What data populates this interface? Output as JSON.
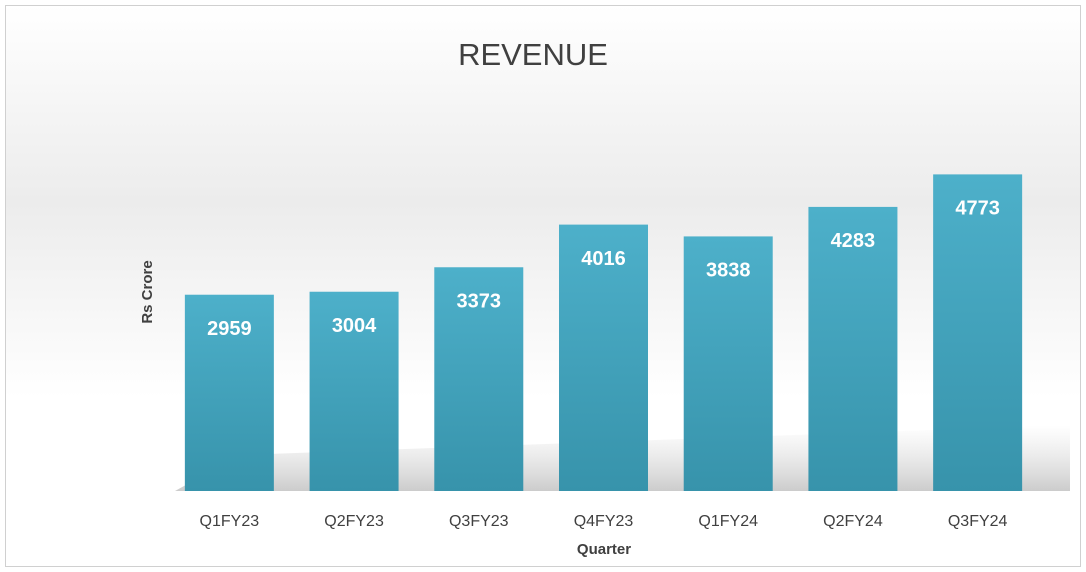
{
  "chart_data": {
    "type": "bar",
    "title": "REVENUE",
    "x_label": "Quarter",
    "y_label": "Rs Crore",
    "categories": [
      "Q1FY23",
      "Q2FY23",
      "Q3FY23",
      "Q4FY23",
      "Q1FY24",
      "Q2FY24",
      "Q3FY24"
    ],
    "values": [
      2959,
      3004,
      3373,
      4016,
      3838,
      4283,
      4773
    ],
    "color": "#4aaec8",
    "ylim": [
      0,
      6000
    ]
  }
}
